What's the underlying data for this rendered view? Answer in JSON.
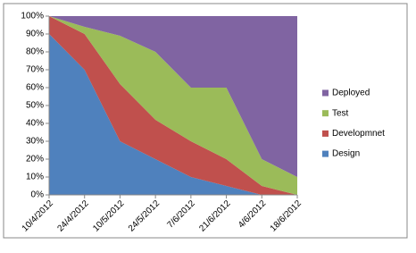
{
  "chart_data": {
    "type": "stacked_area",
    "categories": [
      "10/4/2012",
      "24/4/2012",
      "10/5/2012",
      "24/5/2012",
      "7/6/2012",
      "21/6/2012",
      "4/6/2012",
      "18/6/2012"
    ],
    "series": [
      {
        "name": "Design",
        "color": "#4f81bd",
        "values": [
          90,
          70,
          30,
          20,
          10,
          5,
          0,
          0
        ]
      },
      {
        "name": "Developmnet",
        "color": "#c0504d",
        "values": [
          10,
          20,
          32,
          22,
          20,
          15,
          5,
          0
        ]
      },
      {
        "name": "Test",
        "color": "#9bbb59",
        "values": [
          0,
          4,
          27,
          38,
          30,
          40,
          15,
          10
        ]
      },
      {
        "name": "Deployed",
        "color": "#8064a2",
        "values": [
          0,
          6,
          11,
          20,
          40,
          40,
          80,
          90
        ]
      }
    ],
    "ylim": [
      0,
      100
    ],
    "yticks": [
      {
        "value": 0,
        "label": "0%"
      },
      {
        "value": 10,
        "label": "10%"
      },
      {
        "value": 20,
        "label": "20%"
      },
      {
        "value": 30,
        "label": "30%"
      },
      {
        "value": 40,
        "label": "40%"
      },
      {
        "value": 50,
        "label": "50%"
      },
      {
        "value": 60,
        "label": "60%"
      },
      {
        "value": 70,
        "label": "70%"
      },
      {
        "value": 80,
        "label": "80%"
      },
      {
        "value": 90,
        "label": "90%"
      },
      {
        "value": 100,
        "label": "100%"
      }
    ],
    "legend": "right"
  }
}
